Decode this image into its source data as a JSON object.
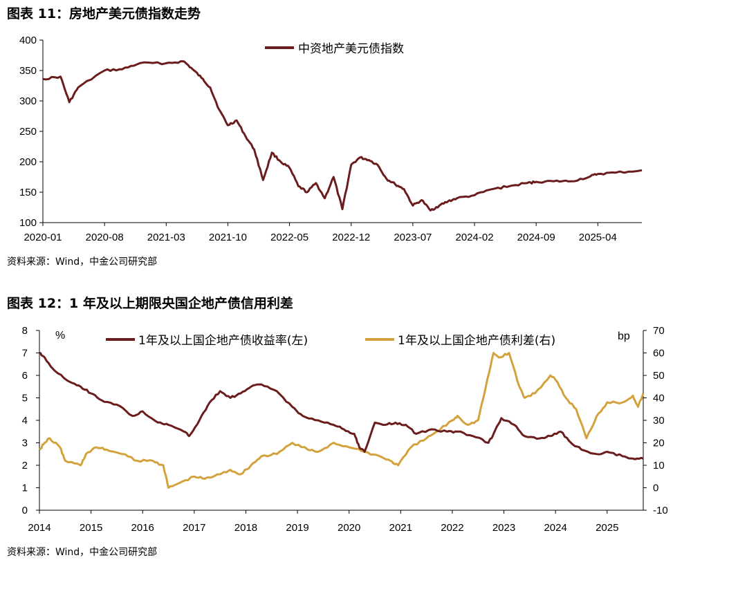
{
  "figures": {
    "fig11": {
      "title": "图表 11：房地产美元债指数走势",
      "source": "资料来源：Wind，中金公司研究部"
    },
    "fig12": {
      "title": "图表 12：1 年及以上期限央国企地产债信用利差",
      "source": "资料来源：Wind，中金公司研究部"
    }
  },
  "chart_data": [
    {
      "type": "line",
      "title": "图表 11：房地产美元债指数走势",
      "xlabel": "",
      "ylabel": "",
      "x_tick_labels": [
        "2020-01",
        "2020-08",
        "2021-03",
        "2021-10",
        "2022-05",
        "2022-12",
        "2023-07",
        "2024-02",
        "2024-09",
        "2025-04"
      ],
      "x_range": [
        "2020-01",
        "2025-09"
      ],
      "ylim": [
        100,
        400
      ],
      "y_ticks": [
        100,
        150,
        200,
        250,
        300,
        350,
        400
      ],
      "legend_position": "top-center",
      "grid": false,
      "series": [
        {
          "name": "中资地产美元债指数",
          "color": "#6b1c1c",
          "x": [
            "2020-01",
            "2020-03",
            "2020-04",
            "2020-05",
            "2020-08",
            "2020-10",
            "2020-12",
            "2021-03",
            "2021-05",
            "2021-06",
            "2021-07",
            "2021-08",
            "2021-09",
            "2021-10",
            "2021-11",
            "2021-12",
            "2022-01",
            "2022-02",
            "2022-03",
            "2022-04",
            "2022-05",
            "2022-06",
            "2022-07",
            "2022-08",
            "2022-09",
            "2022-10",
            "2022-11",
            "2022-12",
            "2023-01",
            "2023-02",
            "2023-03",
            "2023-04",
            "2023-05",
            "2023-06",
            "2023-07",
            "2023-08",
            "2023-09",
            "2023-10",
            "2023-11",
            "2023-12",
            "2024-02",
            "2024-04",
            "2024-06",
            "2024-08",
            "2024-09",
            "2024-11",
            "2025-01",
            "2025-03",
            "2025-04",
            "2025-06",
            "2025-09"
          ],
          "values": [
            336,
            340,
            298,
            322,
            350,
            352,
            362,
            362,
            365,
            352,
            338,
            322,
            286,
            260,
            268,
            242,
            220,
            170,
            215,
            200,
            190,
            160,
            150,
            165,
            140,
            175,
            122,
            195,
            207,
            203,
            195,
            172,
            163,
            155,
            128,
            137,
            120,
            128,
            135,
            140,
            145,
            155,
            160,
            165,
            167,
            168,
            168,
            175,
            180,
            182,
            186
          ]
        }
      ]
    },
    {
      "type": "line",
      "title": "图表 12：1 年及以上期限央国企地产债信用利差",
      "xlabel": "",
      "x_tick_labels": [
        "2014",
        "2015",
        "2016",
        "2017",
        "2018",
        "2019",
        "2020",
        "2021",
        "2022",
        "2023",
        "2024",
        "2025"
      ],
      "x_range": [
        2014,
        2025.7
      ],
      "y_left": {
        "unit": "%",
        "ylim": [
          0,
          8
        ],
        "ticks": [
          0,
          1,
          2,
          3,
          4,
          5,
          6,
          7,
          8
        ]
      },
      "y_right": {
        "unit": "bp",
        "ylim": [
          -10,
          70
        ],
        "ticks": [
          -10,
          0,
          10,
          20,
          30,
          40,
          50,
          60,
          70
        ]
      },
      "legend_position": "top-center",
      "grid": false,
      "series": [
        {
          "name": "1年及以上国企地产债收益率(左)",
          "axis": "left",
          "color": "#6b1c1c",
          "x": [
            2014.0,
            2014.1,
            2014.3,
            2014.6,
            2014.8,
            2015.0,
            2015.2,
            2015.5,
            2015.8,
            2016.0,
            2016.3,
            2016.5,
            2016.8,
            2016.9,
            2017.1,
            2017.3,
            2017.5,
            2017.7,
            2017.9,
            2018.1,
            2018.3,
            2018.6,
            2018.9,
            2019.1,
            2019.4,
            2019.7,
            2019.9,
            2020.1,
            2020.2,
            2020.3,
            2020.5,
            2020.7,
            2020.9,
            2021.1,
            2021.3,
            2021.6,
            2021.9,
            2022.1,
            2022.4,
            2022.7,
            2022.8,
            2022.95,
            2023.2,
            2023.4,
            2023.7,
            2023.9,
            2024.1,
            2024.3,
            2024.5,
            2024.8,
            2025.0,
            2025.3,
            2025.5,
            2025.7
          ],
          "values": [
            7.0,
            6.8,
            6.2,
            5.7,
            5.5,
            5.2,
            4.9,
            4.7,
            4.2,
            4.4,
            3.9,
            3.8,
            3.5,
            3.3,
            4.0,
            4.8,
            5.3,
            5.0,
            5.2,
            5.5,
            5.6,
            5.3,
            4.6,
            4.2,
            4.0,
            3.8,
            3.6,
            3.4,
            2.8,
            2.6,
            3.9,
            3.8,
            3.9,
            3.8,
            3.4,
            3.6,
            3.5,
            3.5,
            3.3,
            3.0,
            3.4,
            4.1,
            3.8,
            3.3,
            3.2,
            3.3,
            3.5,
            3.0,
            2.7,
            2.5,
            2.6,
            2.4,
            2.3,
            2.3
          ]
        },
        {
          "name": "1年及以上国企地产债利差(右)",
          "axis": "right",
          "color": "#d4a23c",
          "x": [
            2014.0,
            2014.1,
            2014.2,
            2014.4,
            2014.5,
            2014.8,
            2014.9,
            2015.1,
            2015.3,
            2015.6,
            2015.9,
            2016.2,
            2016.4,
            2016.5,
            2016.7,
            2017.0,
            2017.2,
            2017.5,
            2017.7,
            2017.9,
            2018.1,
            2018.3,
            2018.6,
            2018.9,
            2019.2,
            2019.4,
            2019.7,
            2020.0,
            2020.3,
            2020.6,
            2020.8,
            2020.95,
            2021.2,
            2021.5,
            2021.7,
            2022.0,
            2022.1,
            2022.3,
            2022.5,
            2022.65,
            2022.8,
            2022.9,
            2023.1,
            2023.3,
            2023.4,
            2023.6,
            2023.9,
            2024.0,
            2024.2,
            2024.4,
            2024.6,
            2024.8,
            2025.0,
            2025.3,
            2025.5,
            2025.6,
            2025.7
          ],
          "values": [
            17,
            20,
            22,
            18,
            12,
            10,
            15,
            18,
            17,
            15,
            12,
            12,
            10,
            0,
            2,
            5,
            4,
            6,
            8,
            6,
            10,
            14,
            15,
            20,
            17,
            16,
            20,
            18,
            16,
            14,
            12,
            10,
            18,
            22,
            25,
            30,
            32,
            28,
            30,
            45,
            60,
            58,
            60,
            45,
            40,
            42,
            50,
            48,
            40,
            35,
            22,
            32,
            38,
            38,
            41,
            36,
            42
          ]
        }
      ]
    }
  ]
}
